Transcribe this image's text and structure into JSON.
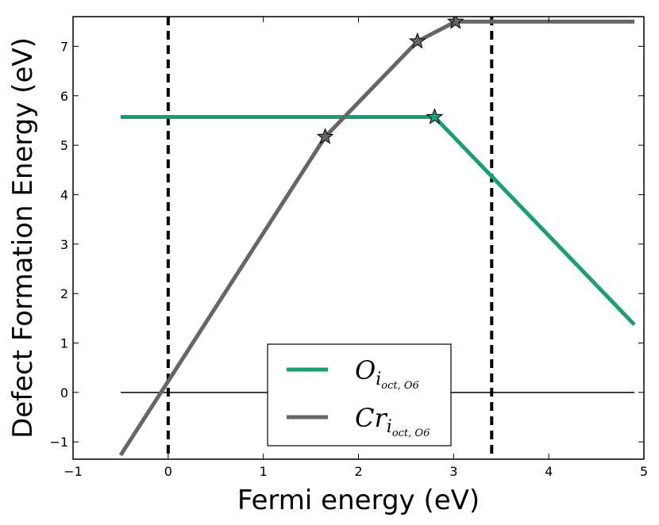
{
  "chart_data": {
    "type": "line",
    "xlabel": "Fermi energy (eV)",
    "ylabel": "Defect Formation Energy (eV)",
    "xlim": [
      -1,
      5
    ],
    "ylim": [
      -1.35,
      7.6
    ],
    "x_ticks": [
      -1,
      0,
      1,
      2,
      3,
      4,
      5
    ],
    "y_ticks": [
      -1,
      0,
      1,
      2,
      3,
      4,
      5,
      6,
      7
    ],
    "x_tick_labels": [
      "−1",
      "0",
      "1",
      "2",
      "3",
      "4",
      "5"
    ],
    "y_tick_labels": [
      "−1",
      "0",
      "1",
      "2",
      "3",
      "4",
      "5",
      "6",
      "7"
    ],
    "grid": false,
    "legend_position": "lower-center",
    "vlines": [
      0,
      3.4
    ],
    "hline": {
      "y": 0,
      "x": [
        -0.5,
        4.9
      ]
    },
    "series": [
      {
        "name_base": "O",
        "name_sub": "i",
        "name_subsub": "oct, O6",
        "color": "#1b9e77",
        "points": [
          [
            -0.5,
            5.57
          ],
          [
            2.8,
            5.57
          ],
          [
            4.9,
            1.37
          ]
        ],
        "transitions": [
          [
            2.8,
            5.57
          ]
        ]
      },
      {
        "name_base": "Cr",
        "name_sub": "i",
        "name_subsub": "oct, O6",
        "color": "#666666",
        "points": [
          [
            -0.5,
            -1.27
          ],
          [
            1.65,
            5.17
          ],
          [
            2.62,
            7.1
          ],
          [
            3.02,
            7.5
          ],
          [
            4.9,
            7.5
          ]
        ],
        "transitions": [
          [
            1.65,
            5.17
          ],
          [
            2.62,
            7.1
          ],
          [
            3.02,
            7.5
          ]
        ]
      }
    ]
  }
}
